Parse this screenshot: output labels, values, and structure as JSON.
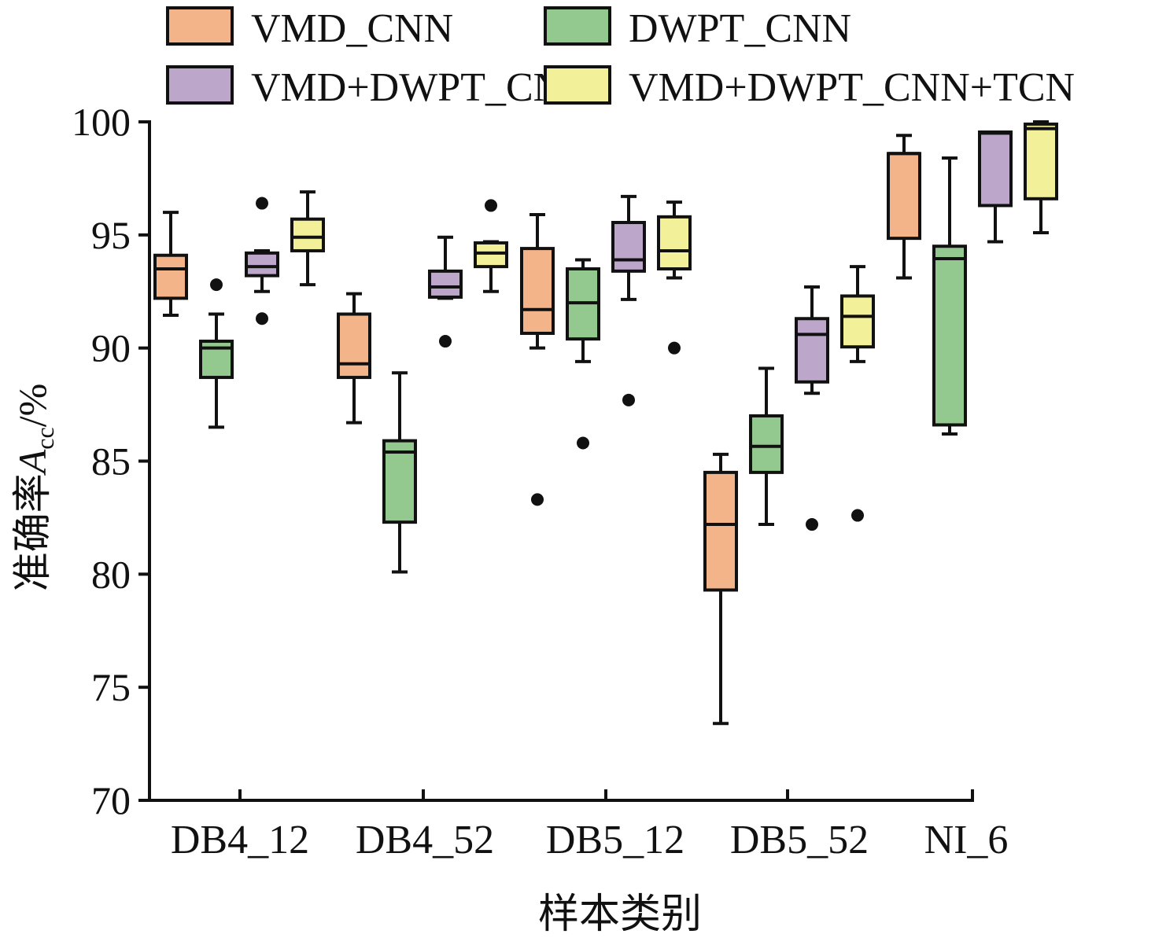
{
  "chart_data": {
    "type": "boxplot",
    "title": "",
    "xlabel": "样本类别",
    "ylabel_main": "准确率",
    "ylabel_var": "A",
    "ylabel_sub": "cc",
    "ylabel_unit": "/%",
    "ylim": [
      70,
      100
    ],
    "yticks": [
      "70",
      "75",
      "80",
      "85",
      "90",
      "95",
      "100"
    ],
    "categories": [
      "DB4_12",
      "DB4_52",
      "DB5_12",
      "DB5_52",
      "NI_6"
    ],
    "legend_position": "top",
    "series": [
      {
        "name": "VMD_CNN",
        "color": "#f4b48a",
        "boxes": [
          {
            "whislo": 91.45,
            "q1": 92.2,
            "med": 93.5,
            "q3": 94.1,
            "whishi": 96.0,
            "fliers": []
          },
          {
            "whislo": 86.7,
            "q1": 88.7,
            "med": 89.3,
            "q3": 91.5,
            "whishi": 92.4,
            "fliers": []
          },
          {
            "whislo": 90.0,
            "q1": 90.65,
            "med": 91.7,
            "q3": 94.4,
            "whishi": 95.9,
            "fliers": [
              83.3
            ]
          },
          {
            "whislo": 73.4,
            "q1": 79.3,
            "med": 82.2,
            "q3": 84.5,
            "whishi": 85.3,
            "fliers": []
          },
          {
            "whislo": 93.1,
            "q1": 94.85,
            "med": 98.6,
            "q3": 98.6,
            "whishi": 99.4,
            "fliers": []
          }
        ]
      },
      {
        "name": "DWPT_CNN",
        "color": "#93c98e",
        "boxes": [
          {
            "whislo": 86.5,
            "q1": 88.7,
            "med": 90.0,
            "q3": 90.3,
            "whishi": 91.5,
            "fliers": [
              92.8
            ]
          },
          {
            "whislo": 80.1,
            "q1": 82.3,
            "med": 85.4,
            "q3": 85.9,
            "whishi": 88.9,
            "fliers": []
          },
          {
            "whislo": 89.4,
            "q1": 90.4,
            "med": 92.0,
            "q3": 93.5,
            "whishi": 93.9,
            "fliers": [
              85.8
            ]
          },
          {
            "whislo": 82.2,
            "q1": 84.5,
            "med": 85.65,
            "q3": 87.0,
            "whishi": 89.1,
            "fliers": []
          },
          {
            "whislo": 86.2,
            "q1": 86.6,
            "med": 93.95,
            "q3": 94.5,
            "whishi": 98.4,
            "fliers": []
          }
        ]
      },
      {
        "name": "VMD+DWPT_CNN",
        "color": "#bca6c9",
        "boxes": [
          {
            "whislo": 92.5,
            "q1": 93.2,
            "med": 93.6,
            "q3": 94.2,
            "whishi": 94.3,
            "fliers": [
              96.4,
              91.3
            ]
          },
          {
            "whislo": 92.2,
            "q1": 92.25,
            "med": 92.7,
            "q3": 93.4,
            "whishi": 94.9,
            "fliers": [
              90.3
            ]
          },
          {
            "whislo": 92.15,
            "q1": 93.4,
            "med": 93.9,
            "q3": 95.55,
            "whishi": 96.7,
            "fliers": [
              87.7
            ]
          },
          {
            "whislo": 88.0,
            "q1": 88.5,
            "med": 90.6,
            "q3": 91.3,
            "whishi": 92.7,
            "fliers": [
              82.2
            ]
          },
          {
            "whislo": 94.7,
            "q1": 96.3,
            "med": 99.5,
            "q3": 99.55,
            "whishi": 99.55,
            "fliers": []
          }
        ]
      },
      {
        "name": "VMD+DWPT_CNN+TCN",
        "color": "#f3f09a",
        "boxes": [
          {
            "whislo": 92.8,
            "q1": 94.3,
            "med": 94.9,
            "q3": 95.7,
            "whishi": 96.9,
            "fliers": []
          },
          {
            "whislo": 92.5,
            "q1": 93.6,
            "med": 94.2,
            "q3": 94.65,
            "whishi": 94.7,
            "fliers": [
              96.3
            ]
          },
          {
            "whislo": 93.1,
            "q1": 93.5,
            "med": 94.3,
            "q3": 95.8,
            "whishi": 96.45,
            "fliers": [
              90.0
            ]
          },
          {
            "whislo": 89.4,
            "q1": 90.05,
            "med": 91.4,
            "q3": 92.3,
            "whishi": 93.6,
            "fliers": [
              82.6
            ]
          },
          {
            "whislo": 95.1,
            "q1": 96.6,
            "med": 99.7,
            "q3": 99.9,
            "whishi": 100.0,
            "fliers": []
          }
        ]
      }
    ]
  }
}
